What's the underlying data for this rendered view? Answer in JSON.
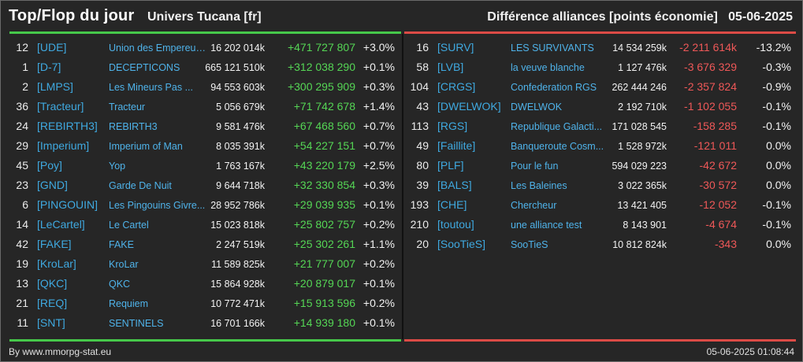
{
  "header": {
    "title": "Top/Flop du jour",
    "universe": "Univers Tucana [fr]",
    "subtitle": "Différence alliances [points économie]",
    "date": "05-06-2025"
  },
  "colors": {
    "positive": "#55d655",
    "negative": "#ef5858",
    "tag": "#3fa9e0",
    "top_bar": "#46c84a",
    "flop_bar": "#dc4b46"
  },
  "top": [
    {
      "rank": "12",
      "tag": "[UDE]",
      "name": "Union des Empereur...",
      "points": "16 202 014k",
      "diff": "+471 727 807",
      "pct": "+3.0%"
    },
    {
      "rank": "1",
      "tag": "[D-7]",
      "name": "DECEPTICONS",
      "points": "665 121 510k",
      "diff": "+312 038 290",
      "pct": "+0.1%"
    },
    {
      "rank": "2",
      "tag": "[LMPS]",
      "name": "Les Mineurs Pas ...",
      "points": "94 553 603k",
      "diff": "+300 295 909",
      "pct": "+0.3%"
    },
    {
      "rank": "36",
      "tag": "[Tracteur]",
      "name": "Tracteur",
      "points": "5 056 679k",
      "diff": "+71 742 678",
      "pct": "+1.4%"
    },
    {
      "rank": "24",
      "tag": "[REBIRTH3]",
      "name": "REBIRTH3",
      "points": "9 581 476k",
      "diff": "+67 468 560",
      "pct": "+0.7%"
    },
    {
      "rank": "29",
      "tag": "[Imperium]",
      "name": "Imperium of Man",
      "points": "8 035 391k",
      "diff": "+54 227 151",
      "pct": "+0.7%"
    },
    {
      "rank": "45",
      "tag": "[Poy]",
      "name": "Yop",
      "points": "1 763 167k",
      "diff": "+43 220 179",
      "pct": "+2.5%"
    },
    {
      "rank": "23",
      "tag": "[GND]",
      "name": "Garde De Nuit",
      "points": "9 644 718k",
      "diff": "+32 330 854",
      "pct": "+0.3%"
    },
    {
      "rank": "6",
      "tag": "[PINGOUIN]",
      "name": "Les Pingouins Givre...",
      "points": "28 952 786k",
      "diff": "+29 039 935",
      "pct": "+0.1%"
    },
    {
      "rank": "14",
      "tag": "[LeCartel]",
      "name": "Le Cartel",
      "points": "15 023 818k",
      "diff": "+25 802 757",
      "pct": "+0.2%"
    },
    {
      "rank": "42",
      "tag": "[FAKE]",
      "name": "FAKE",
      "points": "2 247 519k",
      "diff": "+25 302 261",
      "pct": "+1.1%"
    },
    {
      "rank": "19",
      "tag": "[KroLar]",
      "name": "KroLar",
      "points": "11 589 825k",
      "diff": "+21 777 007",
      "pct": "+0.2%"
    },
    {
      "rank": "13",
      "tag": "[QKC]",
      "name": "QKC",
      "points": "15 864 928k",
      "diff": "+20 879 017",
      "pct": "+0.1%"
    },
    {
      "rank": "21",
      "tag": "[REQ]",
      "name": "Requiem",
      "points": "10 772 471k",
      "diff": "+15 913 596",
      "pct": "+0.2%"
    },
    {
      "rank": "11",
      "tag": "[SNT]",
      "name": "SENTINELS",
      "points": "16 701 166k",
      "diff": "+14 939 180",
      "pct": "+0.1%"
    }
  ],
  "flop": [
    {
      "rank": "16",
      "tag": "[SURV]",
      "name": "LES SURVIVANTS",
      "points": "14 534 259k",
      "diff": "-2 211 614k",
      "pct": "-13.2%"
    },
    {
      "rank": "58",
      "tag": "[LVB]",
      "name": "la veuve blanche",
      "points": "1 127 476k",
      "diff": "-3 676 329",
      "pct": "-0.3%"
    },
    {
      "rank": "104",
      "tag": "[CRGS]",
      "name": "Confederation RGS",
      "points": "262 444 246",
      "diff": "-2 357 824",
      "pct": "-0.9%"
    },
    {
      "rank": "43",
      "tag": "[DWELWOK]",
      "name": "DWELWOK",
      "points": "2 192 710k",
      "diff": "-1 102 055",
      "pct": "-0.1%"
    },
    {
      "rank": "113",
      "tag": "[RGS]",
      "name": "Republique Galacti...",
      "points": "171 028 545",
      "diff": "-158 285",
      "pct": "-0.1%"
    },
    {
      "rank": "49",
      "tag": "[Faillite]",
      "name": "Banqueroute Cosm...",
      "points": "1 528 972k",
      "diff": "-121 011",
      "pct": "0.0%"
    },
    {
      "rank": "80",
      "tag": "[PLF]",
      "name": "Pour le fun",
      "points": "594 029 223",
      "diff": "-42 672",
      "pct": "0.0%"
    },
    {
      "rank": "39",
      "tag": "[BALS]",
      "name": "Les Baleines",
      "points": "3 022 365k",
      "diff": "-30 572",
      "pct": "0.0%"
    },
    {
      "rank": "193",
      "tag": "[CHE]",
      "name": "Chercheur",
      "points": "13 421 405",
      "diff": "-12 052",
      "pct": "-0.1%"
    },
    {
      "rank": "210",
      "tag": "[toutou]",
      "name": "une alliance test",
      "points": "8 143 901",
      "diff": "-4 674",
      "pct": "-0.1%"
    },
    {
      "rank": "20",
      "tag": "[SooTieS]",
      "name": "SooTieS",
      "points": "10 812 824k",
      "diff": "-343",
      "pct": "0.0%"
    }
  ],
  "footer": {
    "source": "By www.mmorpg-stat.eu",
    "timestamp": "05-06-2025 01:08:44"
  }
}
